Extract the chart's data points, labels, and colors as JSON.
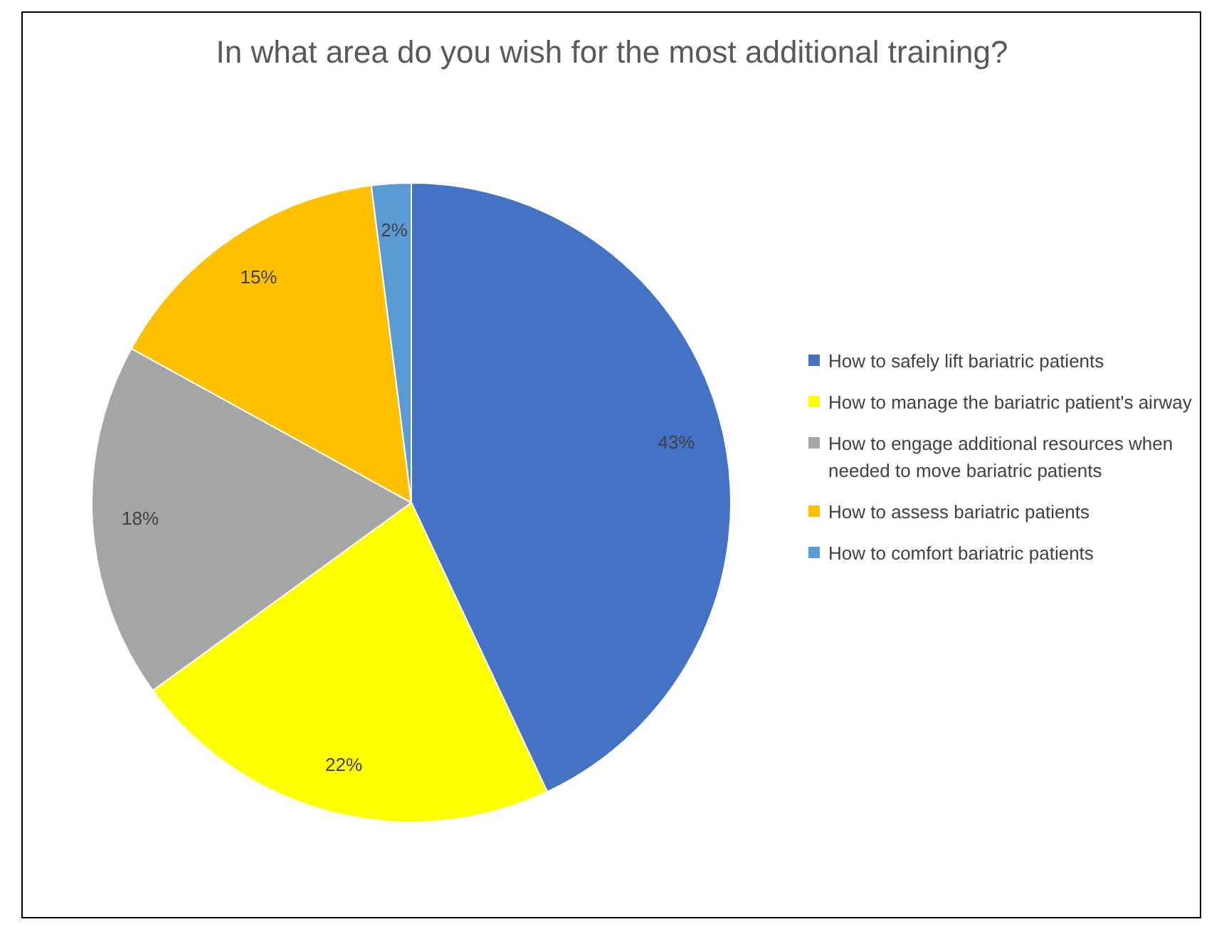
{
  "chart_data": {
    "type": "pie",
    "title": "In what area do you wish for the most additional training?",
    "categories": [
      "How to safely lift bariatric patients",
      "How to manage the bariatric patient's airway",
      "How to engage additional resources when needed to move bariatric patients",
      "How to assess bariatric patients",
      "How to comfort bariatric patients"
    ],
    "values": [
      43,
      22,
      18,
      15,
      2
    ],
    "colors": [
      "#4472c4",
      "#ffff00",
      "#a5a5a5",
      "#ffc000",
      "#5b9bd5"
    ],
    "value_labels": [
      "43%",
      "22%",
      "18%",
      "15%",
      "2%"
    ],
    "legend": "right"
  }
}
